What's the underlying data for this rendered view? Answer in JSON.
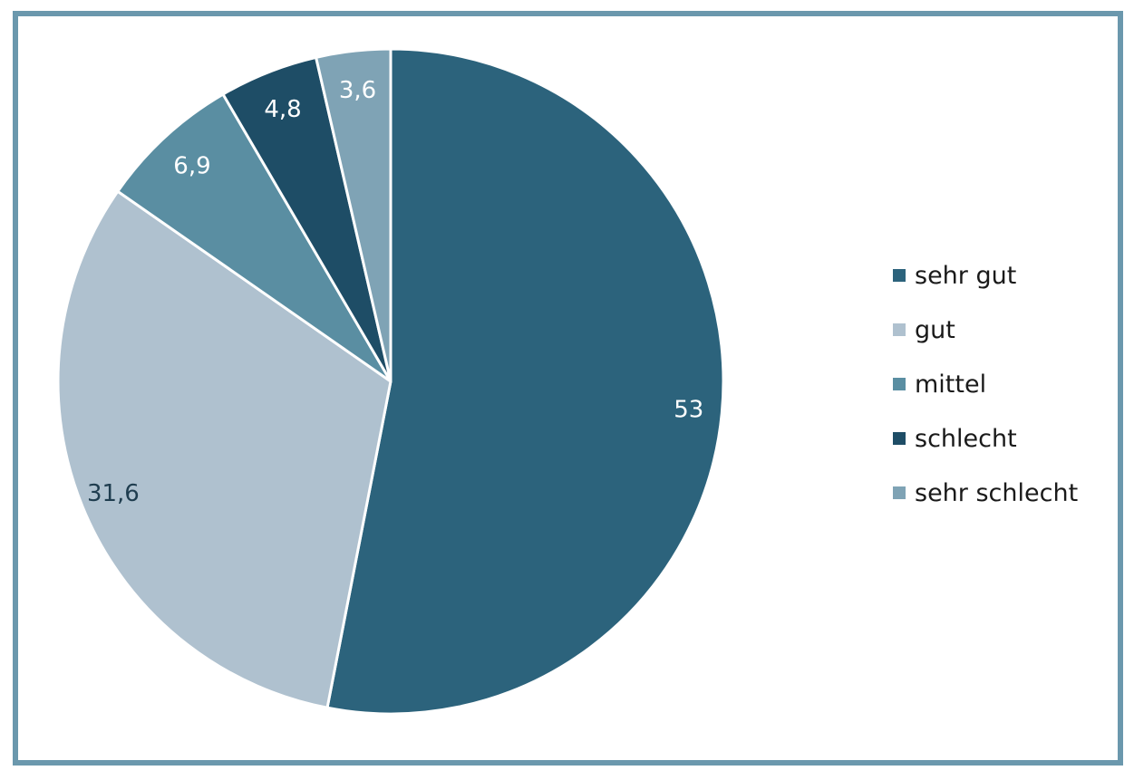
{
  "chart_data": {
    "type": "pie",
    "categories": [
      "sehr gut",
      "gut",
      "mittel",
      "schlecht",
      "sehr schlecht"
    ],
    "values": [
      53,
      31.6,
      6.9,
      4.8,
      3.6
    ],
    "data_labels": [
      "53",
      "31,6",
      "6,9",
      "4,8",
      "3,6"
    ],
    "colors": [
      "#2c637c",
      "#afc1cf",
      "#5a8ea2",
      "#1e4d66",
      "#7fa3b5"
    ],
    "label_colors": [
      "#ffffff",
      "#1f3d4f",
      "#ffffff",
      "#ffffff",
      "#ffffff"
    ],
    "legend_position": "right",
    "start_angle_deg": 0,
    "direction": "clockwise"
  }
}
